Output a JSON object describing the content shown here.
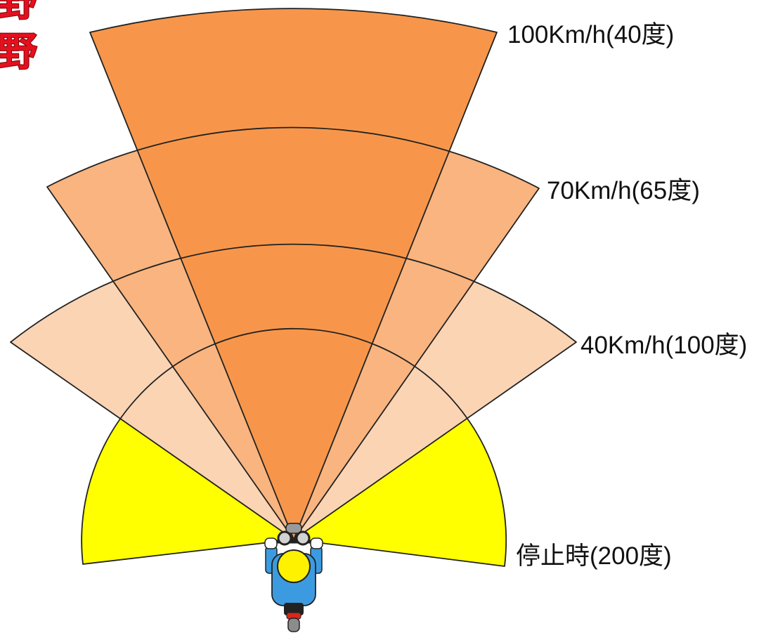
{
  "corner_text": {
    "items": [
      "野",
      "野"
    ],
    "color": "#E5101F",
    "outline_color": "#7A0000"
  },
  "sectors": [
    {
      "label": "100Km/h(40度)",
      "speed_kmh": 100,
      "angle_deg": 40,
      "color": "#F7964A"
    },
    {
      "label": "70Km/h(65度)",
      "speed_kmh": 70,
      "angle_deg": 65,
      "color": "#F9B47F"
    },
    {
      "label": "40Km/h(100度)",
      "speed_kmh": 40,
      "angle_deg": 100,
      "color": "#FBD4B4"
    },
    {
      "label": "停止時(200度)",
      "speed_kmh": 0,
      "angle_deg": 200,
      "color": "#FFFF00"
    }
  ],
  "rider": {
    "helmet_color": "#FFF200",
    "suit_color": "#3C9BE0",
    "glove_color": "#FFFFFF",
    "taillight_color": "#D9261C"
  }
}
